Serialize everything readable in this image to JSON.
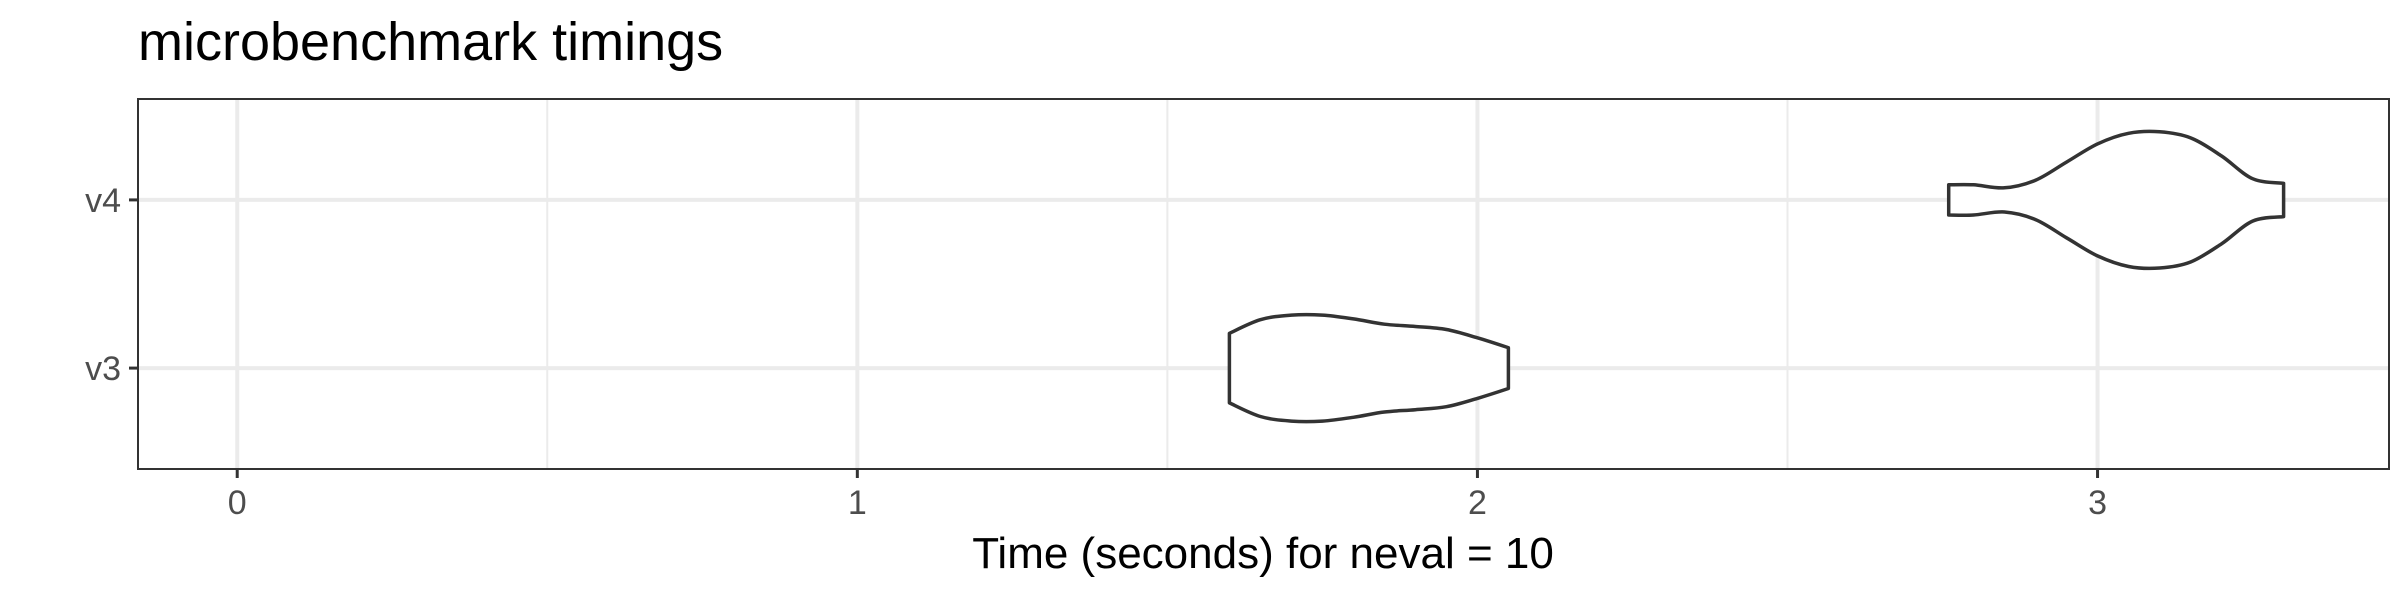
{
  "chart_data": {
    "type": "violin",
    "title": "microbenchmark timings",
    "xlabel": "Time (seconds) for neval = 10",
    "ylabel": "",
    "orientation": "horizontal",
    "xlim": [
      -0.16,
      3.47
    ],
    "x_ticks": [
      0,
      1,
      2,
      3
    ],
    "x_tick_labels": [
      "0",
      "1",
      "2",
      "3"
    ],
    "x_minor_ticks": [
      0.5,
      1.5,
      2.5
    ],
    "categories": [
      "v3",
      "v4"
    ],
    "grid": true,
    "legend": "none",
    "series": [
      {
        "category": "v3",
        "min": 1.6,
        "max": 2.05,
        "density_profile": [
          [
            1.6,
            0.46
          ],
          [
            1.65,
            0.64
          ],
          [
            1.7,
            0.7
          ],
          [
            1.75,
            0.7
          ],
          [
            1.8,
            0.65
          ],
          [
            1.85,
            0.58
          ],
          [
            1.9,
            0.55
          ],
          [
            1.95,
            0.51
          ],
          [
            2.0,
            0.4
          ],
          [
            2.05,
            0.27
          ]
        ]
      },
      {
        "category": "v4",
        "min": 2.76,
        "max": 3.3,
        "density_profile": [
          [
            2.76,
            0.2
          ],
          [
            2.8,
            0.2
          ],
          [
            2.85,
            0.16
          ],
          [
            2.9,
            0.26
          ],
          [
            2.95,
            0.5
          ],
          [
            3.0,
            0.74
          ],
          [
            3.05,
            0.88
          ],
          [
            3.1,
            0.9
          ],
          [
            3.15,
            0.82
          ],
          [
            3.2,
            0.58
          ],
          [
            3.25,
            0.28
          ],
          [
            3.3,
            0.22
          ]
        ]
      }
    ],
    "colors": {
      "outline": "#333333",
      "fill": "#ffffff",
      "grid": "#ebebeb"
    }
  }
}
